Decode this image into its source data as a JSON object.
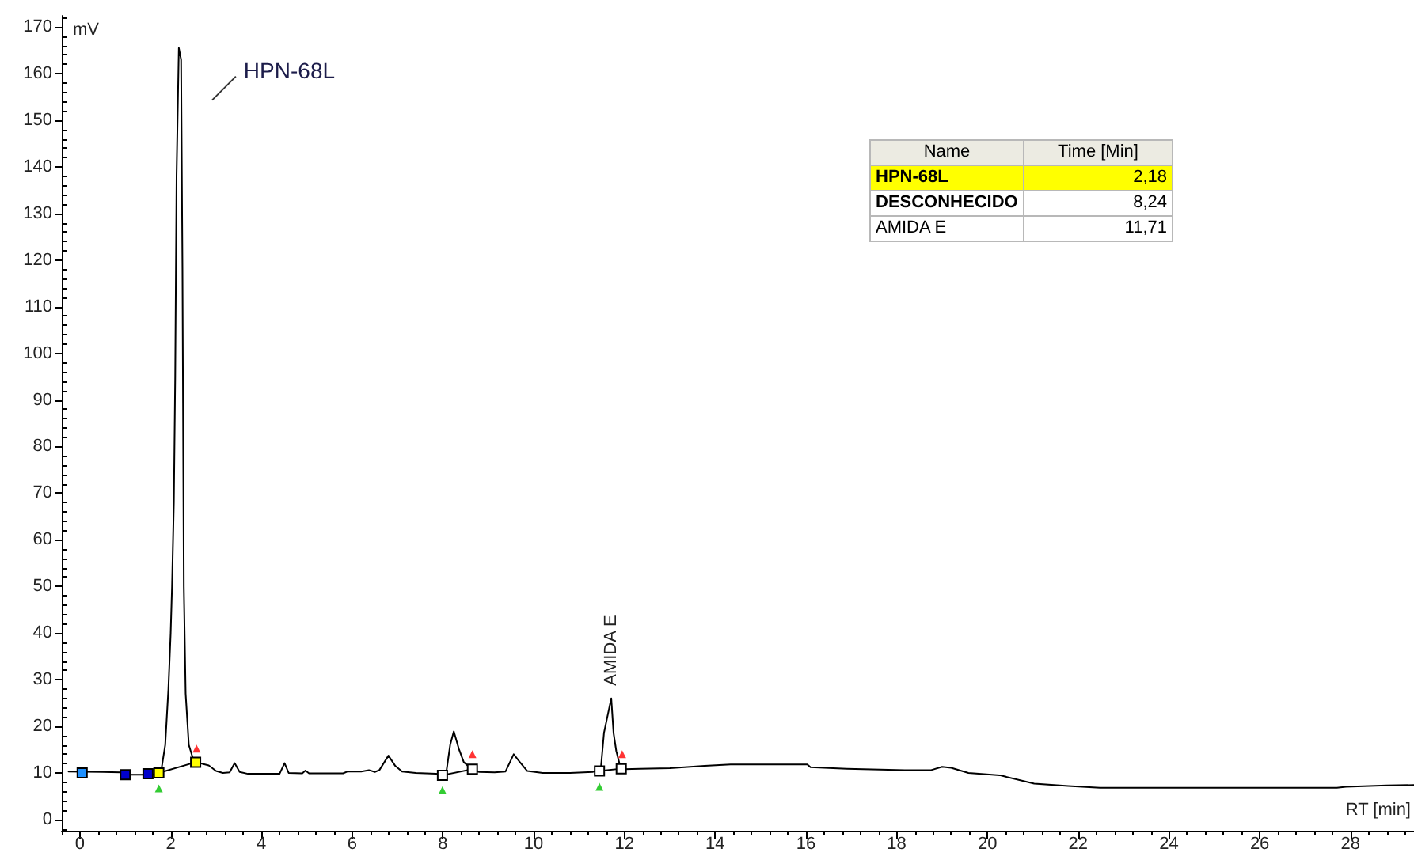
{
  "chart_data": [
    {
      "type": "line",
      "xlabel": "RT [min]",
      "ylabel": "mV",
      "xlim": [
        -0.4,
        29.4
      ],
      "ylim": [
        -2.4,
        172.4
      ],
      "xticks": [
        {
          "value": -0.4,
          "label": null
        },
        0,
        {
          "value": 0.4,
          "label": null
        },
        {
          "value": 0.8,
          "label": null
        },
        {
          "value": 1.2,
          "label": null
        },
        {
          "value": 1.6,
          "label": null
        },
        2,
        {
          "value": 2.4,
          "label": null
        },
        {
          "value": 2.8,
          "label": null
        },
        {
          "value": 3.2,
          "label": null
        },
        {
          "value": 3.6,
          "label": null
        },
        4,
        {
          "value": 4.4,
          "label": null
        },
        {
          "value": 4.8,
          "label": null
        },
        {
          "value": 5.2,
          "label": null
        },
        {
          "value": 5.6,
          "label": null
        },
        6,
        {
          "value": 6.4,
          "label": null
        },
        {
          "value": 6.8,
          "label": null
        },
        {
          "value": 7.2,
          "label": null
        },
        {
          "value": 7.6,
          "label": null
        },
        8,
        {
          "value": 8.4,
          "label": null
        },
        {
          "value": 8.8,
          "label": null
        },
        {
          "value": 9.2,
          "label": null
        },
        {
          "value": 9.6,
          "label": null
        },
        10,
        {
          "value": 10.4,
          "label": null
        },
        {
          "value": 10.8,
          "label": null
        },
        {
          "value": 11.2,
          "label": null
        },
        {
          "value": 11.6,
          "label": null
        },
        12,
        {
          "value": 12.4,
          "label": null
        },
        {
          "value": 12.8,
          "label": null
        },
        {
          "value": 13.2,
          "label": null
        },
        {
          "value": 13.6,
          "label": null
        },
        14,
        {
          "value": 14.4,
          "label": null
        },
        {
          "value": 14.8,
          "label": null
        },
        {
          "value": 15.2,
          "label": null
        },
        {
          "value": 15.6,
          "label": null
        },
        16,
        {
          "value": 16.4,
          "label": null
        },
        {
          "value": 16.8,
          "label": null
        },
        {
          "value": 17.2,
          "label": null
        },
        {
          "value": 17.6,
          "label": null
        },
        18,
        {
          "value": 18.4,
          "label": null
        },
        {
          "value": 18.8,
          "label": null
        },
        {
          "value": 19.2,
          "label": null
        },
        {
          "value": 19.6,
          "label": null
        },
        20,
        {
          "value": 20.4,
          "label": null
        },
        {
          "value": 20.8,
          "label": null
        },
        {
          "value": 21.2,
          "label": null
        },
        {
          "value": 21.6,
          "label": null
        },
        22,
        {
          "value": 22.4,
          "label": null
        },
        {
          "value": 22.8,
          "label": null
        },
        {
          "value": 23.2,
          "label": null
        },
        {
          "value": 23.6,
          "label": null
        },
        24,
        {
          "value": 24.4,
          "label": null
        },
        {
          "value": 24.8,
          "label": null
        },
        {
          "value": 25.2,
          "label": null
        },
        {
          "value": 25.6,
          "label": null
        },
        26,
        {
          "value": 26.4,
          "label": null
        },
        {
          "value": 26.8,
          "label": null
        },
        {
          "value": 27.2,
          "label": null
        },
        {
          "value": 27.6,
          "label": null
        },
        28,
        {
          "value": 28.4,
          "label": null
        },
        {
          "value": 28.8,
          "label": null
        },
        {
          "value": 29.2,
          "label": null
        }
      ],
      "yticks": [
        {
          "value": -2,
          "label": null
        },
        0,
        {
          "value": 2,
          "label": null
        },
        {
          "value": 4,
          "label": null
        },
        {
          "value": 6,
          "label": null
        },
        {
          "value": 8,
          "label": null
        },
        10,
        {
          "value": 12,
          "label": null
        },
        {
          "value": 14,
          "label": null
        },
        {
          "value": 16,
          "label": null
        },
        {
          "value": 18,
          "label": null
        },
        20,
        {
          "value": 22,
          "label": null
        },
        {
          "value": 24,
          "label": null
        },
        {
          "value": 26,
          "label": null
        },
        {
          "value": 28,
          "label": null
        },
        30,
        {
          "value": 32,
          "label": null
        },
        {
          "value": 34,
          "label": null
        },
        {
          "value": 36,
          "label": null
        },
        {
          "value": 38,
          "label": null
        },
        40,
        {
          "value": 42,
          "label": null
        },
        {
          "value": 44,
          "label": null
        },
        {
          "value": 46,
          "label": null
        },
        {
          "value": 48,
          "label": null
        },
        50,
        {
          "value": 52,
          "label": null
        },
        {
          "value": 54,
          "label": null
        },
        {
          "value": 56,
          "label": null
        },
        {
          "value": 58,
          "label": null
        },
        60,
        {
          "value": 62,
          "label": null
        },
        {
          "value": 64,
          "label": null
        },
        {
          "value": 66,
          "label": null
        },
        {
          "value": 68,
          "label": null
        },
        70,
        {
          "value": 72,
          "label": null
        },
        {
          "value": 74,
          "label": null
        },
        {
          "value": 76,
          "label": null
        },
        {
          "value": 78,
          "label": null
        },
        80,
        {
          "value": 82,
          "label": null
        },
        {
          "value": 84,
          "label": null
        },
        {
          "value": 86,
          "label": null
        },
        {
          "value": 88,
          "label": null
        },
        90,
        {
          "value": 92,
          "label": null
        },
        {
          "value": 94,
          "label": null
        },
        {
          "value": 96,
          "label": null
        },
        {
          "value": 98,
          "label": null
        },
        100,
        {
          "value": 102,
          "label": null
        },
        {
          "value": 104,
          "label": null
        },
        {
          "value": 106,
          "label": null
        },
        {
          "value": 108,
          "label": null
        },
        110,
        {
          "value": 112,
          "label": null
        },
        {
          "value": 114,
          "label": null
        },
        {
          "value": 116,
          "label": null
        },
        {
          "value": 118,
          "label": null
        },
        120,
        {
          "value": 122,
          "label": null
        },
        {
          "value": 124,
          "label": null
        },
        {
          "value": 126,
          "label": null
        },
        {
          "value": 128,
          "label": null
        },
        130,
        {
          "value": 132,
          "label": null
        },
        {
          "value": 134,
          "label": null
        },
        {
          "value": 136,
          "label": null
        },
        {
          "value": 138,
          "label": null
        },
        140,
        {
          "value": 142,
          "label": null
        },
        {
          "value": 144,
          "label": null
        },
        {
          "value": 146,
          "label": null
        },
        {
          "value": 148,
          "label": null
        },
        150,
        {
          "value": 152,
          "label": null
        },
        {
          "value": 154,
          "label": null
        },
        {
          "value": 156,
          "label": null
        },
        {
          "value": 158,
          "label": null
        },
        160,
        {
          "value": 162,
          "label": null
        },
        {
          "value": 164,
          "label": null
        },
        {
          "value": 166,
          "label": null
        },
        {
          "value": 168,
          "label": null
        },
        170,
        {
          "value": 172,
          "label": null
        }
      ],
      "annotations": [
        {
          "text": "HPN-68L",
          "x": 2.18,
          "y": 165.5
        },
        {
          "text": "AMIDA E",
          "x": 11.71,
          "y": 26
        }
      ],
      "series": [
        {
          "color": "#000000",
          "x": [
            -0.25,
            0.5,
            0.9,
            1.1,
            1.6,
            1.74,
            1.8,
            1.88,
            1.95,
            2.0,
            2.03,
            2.07,
            2.1,
            2.13,
            2.18,
            2.23,
            2.26,
            2.29,
            2.33,
            2.4,
            2.5,
            2.6,
            2.84,
            3.0,
            3.15,
            3.3,
            3.41,
            3.52,
            3.7,
            4.4,
            4.51,
            4.6,
            4.9,
            4.97,
            5.05,
            5.8,
            5.9,
            6.2,
            6.37,
            6.5,
            6.6,
            6.8,
            6.95,
            7.1,
            7.4,
            7.85,
            8.0,
            8.08,
            8.16,
            8.24,
            8.35,
            8.46,
            8.63,
            8.8,
            9.14,
            9.38,
            9.56,
            9.69,
            9.86,
            10.2,
            10.8,
            11.3,
            11.48,
            11.55,
            11.71,
            11.76,
            11.82,
            11.91,
            12.0,
            12.34,
            13.0,
            13.77,
            14.34,
            16.03,
            16.1,
            16.9,
            18.18,
            18.76,
            19.0,
            19.2,
            19.58,
            20.27,
            21.03,
            21.78,
            22.48,
            27.7,
            27.9,
            28.8,
            29.4
          ],
          "values": [
            10.3,
            10.2,
            10.1,
            9.6,
            9.6,
            10,
            11,
            16,
            28,
            40,
            50,
            68,
            95,
            138,
            165.5,
            163,
            118,
            50,
            27,
            16,
            12.8,
            12.2,
            11.6,
            10.4,
            10,
            10.1,
            12.1,
            10.2,
            9.8,
            9.8,
            12.1,
            10,
            9.9,
            10.5,
            9.9,
            9.9,
            10.3,
            10.3,
            10.6,
            10.2,
            10.6,
            13.7,
            11.5,
            10.3,
            10,
            9.8,
            9.6,
            10.5,
            16,
            18.9,
            15.2,
            12.3,
            10.9,
            10.2,
            10.1,
            10.3,
            14,
            12.4,
            10.4,
            10,
            10,
            10.2,
            10.9,
            18.6,
            26,
            18.6,
            14.7,
            11.3,
            10.8,
            10.9,
            11,
            11.5,
            11.8,
            11.8,
            11.2,
            10.9,
            10.6,
            10.6,
            11.3,
            11.1,
            10.0,
            9.5,
            7.7,
            7.2,
            6.8,
            6.8,
            7.0,
            7.3,
            7.4
          ]
        },
        {
          "color": "#000000",
          "x": [
            1.74,
            2.55,
            5,
            7.99,
            8.65,
            10,
            11.45,
            11.93
          ],
          "values": [
            10,
            12.3,
            null,
            9.5,
            10.8,
            null,
            10.4,
            10.9
          ]
        },
        {
          "type": "scatter",
          "marker": "square",
          "colors": [
            "#ffff00",
            "#ffff00",
            "#ffffff",
            "#ffffff",
            "#ffffff",
            "#ffffff"
          ],
          "x": [
            1.74,
            2.55,
            7.99,
            8.65,
            11.45,
            11.93
          ],
          "values": [
            10,
            12.3,
            9.5,
            10.8,
            10.4,
            10.9
          ]
        },
        {
          "type": "scatter",
          "marker": "triangle",
          "color": "#33cc33",
          "x": [
            1.74,
            7.99,
            11.45
          ],
          "values": [
            6.7,
            6.3,
            7.0
          ]
        },
        {
          "type": "scatter",
          "marker": "triangle",
          "color": "#ff3333",
          "x": [
            2.57,
            8.65,
            11.95
          ],
          "values": [
            15.2,
            14,
            14
          ]
        },
        {
          "type": "scatter",
          "marker": "square",
          "colors": [
            "#1e90ff",
            "#0000cc",
            "#0000cc"
          ],
          "x": [
            0.05,
            1.0,
            1.5
          ],
          "values": [
            10,
            9.6,
            9.8
          ]
        }
      ]
    },
    {
      "type": "other",
      "xlabel": "Name",
      "ylabel": "Time [Min]",
      "categories": [
        "HPN-68L",
        "DESCONHECIDO",
        "AMIDA E"
      ],
      "values": [
        2.18,
        8.24,
        11.71
      ],
      "value_labels": [
        "2,18",
        "8,24",
        "11,71"
      ],
      "colors": [
        "#ffff00",
        "#ffffff",
        "#ffffff"
      ]
    }
  ]
}
